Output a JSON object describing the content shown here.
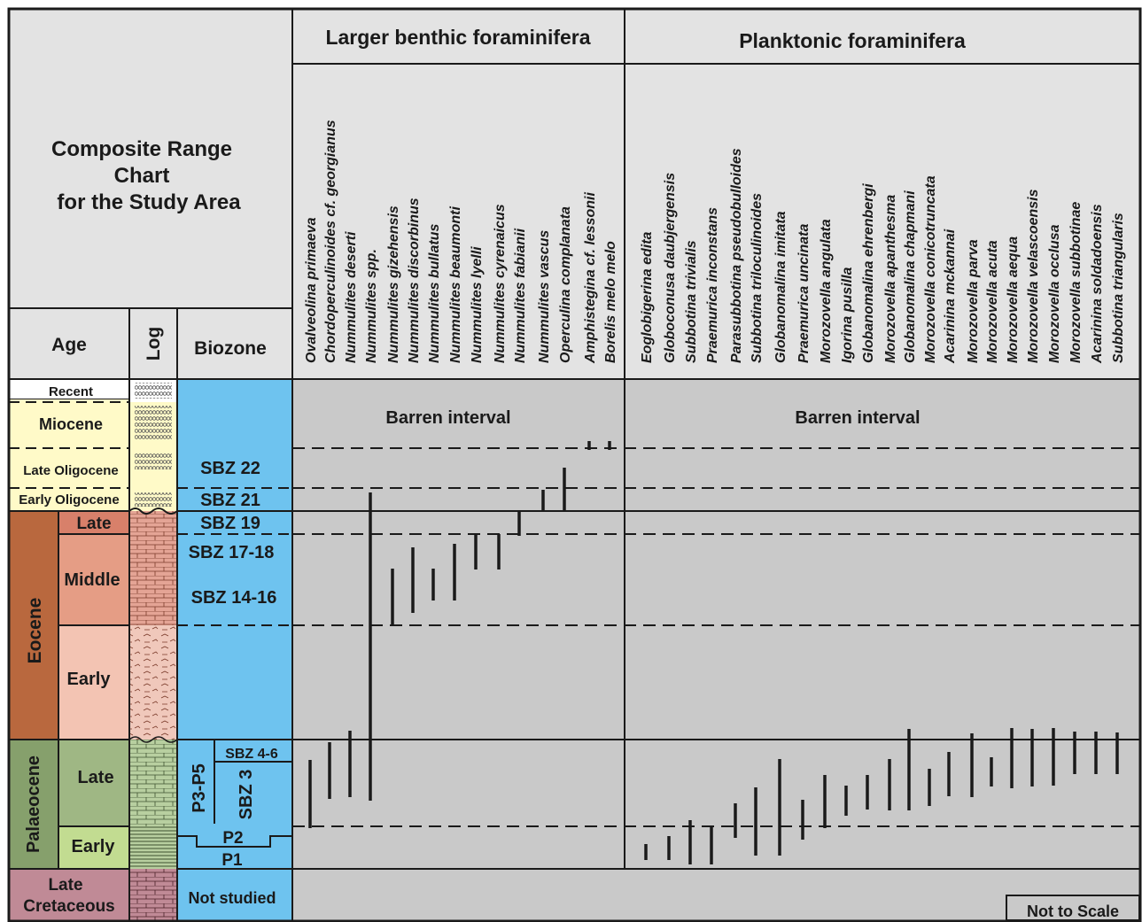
{
  "title": "Composite Range Chart for the Study Area",
  "title_lines": [
    "Composite Range",
    "Chart",
    "for the Study Area"
  ],
  "columns": {
    "age": "Age",
    "log": "Log",
    "biozone": "Biozone"
  },
  "groups": {
    "benthic": "Larger benthic foraminifera",
    "planktonic": "Planktonic foraminifera"
  },
  "barren": {
    "benthic": "Barren interval",
    "planktonic": "Barren interval"
  },
  "not_to_scale": "Not to Scale",
  "ages": {
    "recent": "Recent",
    "miocene": "Miocene",
    "late_oligocene": "Late Oligocene",
    "early_oligocene": "Early Oligocene",
    "eocene": "Eocene",
    "eocene_late": "Late",
    "eocene_middle": "Middle",
    "eocene_early": "Early",
    "palaeocene": "Palaeocene",
    "palaeocene_late": "Late",
    "palaeocene_early": "Early",
    "cretaceous_1": "Late",
    "cretaceous_2": "Cretaceous"
  },
  "biozones": {
    "sbz22": "SBZ 22",
    "sbz21": "SBZ 21",
    "sbz19": "SBZ 19",
    "sbz1718": "SBZ 17-18",
    "sbz1416": "SBZ 14-16",
    "sbz46": "SBZ 4-6",
    "sbz3": "SBZ 3",
    "p3p5": "P3-P5",
    "p2": "P2",
    "p1": "P1",
    "not_studied": "Not studied"
  },
  "colors": {
    "chart_bg": "#c9c9c9",
    "header_bg": "#e3e3e3",
    "biozone_blue": "#6ec3ef",
    "recent": "#ffffff",
    "miocene_oligocene": "#fffac8",
    "eocene_dark": "#b9683e",
    "eocene_late": "#d8806a",
    "eocene_middle": "#e59d85",
    "eocene_early": "#f3c4b3",
    "palaeocene_dark": "#86a06c",
    "palaeocene_late": "#9fb784",
    "palaeocene_early": "#c2dc91",
    "cretaceous": "#c08a96"
  },
  "chart_data": {
    "type": "range chart",
    "intervals": [
      "P1",
      "P2",
      "SBZ 3",
      "SBZ 4-6",
      "SBZ 14-16",
      "SBZ 17-18",
      "SBZ 19",
      "SBZ 21",
      "SBZ 22"
    ],
    "series": [
      {
        "name": "Ovalveolina primaeva",
        "group": "benthic",
        "range": [
          "SBZ 3",
          "SBZ 4-6"
        ]
      },
      {
        "name": "Chordoperculinoides cf. georgianus",
        "group": "benthic",
        "range": [
          "SBZ 3",
          "SBZ 4-6"
        ]
      },
      {
        "name": "Nummulites deserti",
        "group": "benthic",
        "range": [
          "SBZ 3",
          "SBZ 4-6"
        ]
      },
      {
        "name": "Nummulites spp.",
        "group": "benthic",
        "range": [
          "SBZ 3",
          "SBZ 21"
        ]
      },
      {
        "name": "Nummulites gizehensis",
        "group": "benthic",
        "range": [
          "SBZ 14-16",
          "SBZ 17-18"
        ]
      },
      {
        "name": "Nummulites discorbinus",
        "group": "benthic",
        "range": [
          "SBZ 14-16",
          "SBZ 17-18"
        ]
      },
      {
        "name": "Nummulites bullatus",
        "group": "benthic",
        "range": [
          "SBZ 14-16",
          "SBZ 17-18"
        ]
      },
      {
        "name": "Nummulites beaumonti",
        "group": "benthic",
        "range": [
          "SBZ 14-16",
          "SBZ 17-18"
        ]
      },
      {
        "name": "Nummulites lyelli",
        "group": "benthic",
        "range": [
          "SBZ 17-18",
          "SBZ 17-18"
        ]
      },
      {
        "name": "Nummulites cyrenaicus",
        "group": "benthic",
        "range": [
          "SBZ 17-18",
          "SBZ 17-18"
        ]
      },
      {
        "name": "Nummulites fabianii",
        "group": "benthic",
        "range": [
          "SBZ 19",
          "SBZ 19"
        ]
      },
      {
        "name": "Nummulites vascus",
        "group": "benthic",
        "range": [
          "SBZ 21",
          "SBZ 21"
        ]
      },
      {
        "name": "Operculina complanata",
        "group": "benthic",
        "range": [
          "SBZ 21",
          "SBZ 22"
        ]
      },
      {
        "name": "Amphistegina cf. lessonii",
        "group": "benthic",
        "range": [
          "Miocene",
          "Miocene"
        ]
      },
      {
        "name": "Borelis melo melo",
        "group": "benthic",
        "range": [
          "Miocene",
          "Miocene"
        ]
      },
      {
        "name": "Eoglobigerina edita",
        "group": "planktonic",
        "range": [
          "P1",
          "P1"
        ]
      },
      {
        "name": "Globoconusa daubjergensis",
        "group": "planktonic",
        "range": [
          "P1",
          "P1"
        ]
      },
      {
        "name": "Subbotina trivialis",
        "group": "planktonic",
        "range": [
          "P1",
          "P2"
        ]
      },
      {
        "name": "Praemurica inconstans",
        "group": "planktonic",
        "range": [
          "P1",
          "P2"
        ]
      },
      {
        "name": "Parasubbotina pseudobulloides",
        "group": "planktonic",
        "range": [
          "P1",
          "P3-P5"
        ]
      },
      {
        "name": "Subbotina triloculinoides",
        "group": "planktonic",
        "range": [
          "P1",
          "P3-P5"
        ]
      },
      {
        "name": "Globanomalina imitata",
        "group": "planktonic",
        "range": [
          "P1",
          "P3-P5"
        ]
      },
      {
        "name": "Praemurica uncinata",
        "group": "planktonic",
        "range": [
          "P2",
          "P3-P5"
        ]
      },
      {
        "name": "Morozovella angulata",
        "group": "planktonic",
        "range": [
          "P2",
          "P3-P5"
        ]
      },
      {
        "name": "Igorina pusilla",
        "group": "planktonic",
        "range": [
          "P3-P5",
          "P3-P5"
        ]
      },
      {
        "name": "Globanomalina ehrenbergi",
        "group": "planktonic",
        "range": [
          "P3-P5",
          "P3-P5"
        ]
      },
      {
        "name": "Morozovella apanthesma",
        "group": "planktonic",
        "range": [
          "P3-P5",
          "P3-P5"
        ]
      },
      {
        "name": "Globanomalina chapmani",
        "group": "planktonic",
        "range": [
          "P3-P5",
          "P3-P5"
        ]
      },
      {
        "name": "Morozovella conicotruncata",
        "group": "planktonic",
        "range": [
          "P3-P5",
          "P3-P5"
        ]
      },
      {
        "name": "Acarinina mckannai",
        "group": "planktonic",
        "range": [
          "P3-P5",
          "P3-P5"
        ]
      },
      {
        "name": "Morozovella parva",
        "group": "planktonic",
        "range": [
          "P3-P5",
          "P3-P5"
        ]
      },
      {
        "name": "Morozovella acuta",
        "group": "planktonic",
        "range": [
          "P3-P5",
          "P3-P5"
        ]
      },
      {
        "name": "Morozovella aequa",
        "group": "planktonic",
        "range": [
          "P3-P5",
          "P3-P5"
        ]
      },
      {
        "name": "Morozovella velascoensis",
        "group": "planktonic",
        "range": [
          "P3-P5",
          "P3-P5"
        ]
      },
      {
        "name": "Morozovella occlusa",
        "group": "planktonic",
        "range": [
          "P3-P5",
          "P3-P5"
        ]
      },
      {
        "name": "Morozovella subbotinae",
        "group": "planktonic",
        "range": [
          "P3-P5",
          "P3-P5"
        ]
      },
      {
        "name": "Acarinina soldadoensis",
        "group": "planktonic",
        "range": [
          "P3-P5",
          "P3-P5"
        ]
      },
      {
        "name": "Subbotina triangularis",
        "group": "planktonic",
        "range": [
          "P3-P5",
          "P3-P5"
        ]
      }
    ]
  }
}
